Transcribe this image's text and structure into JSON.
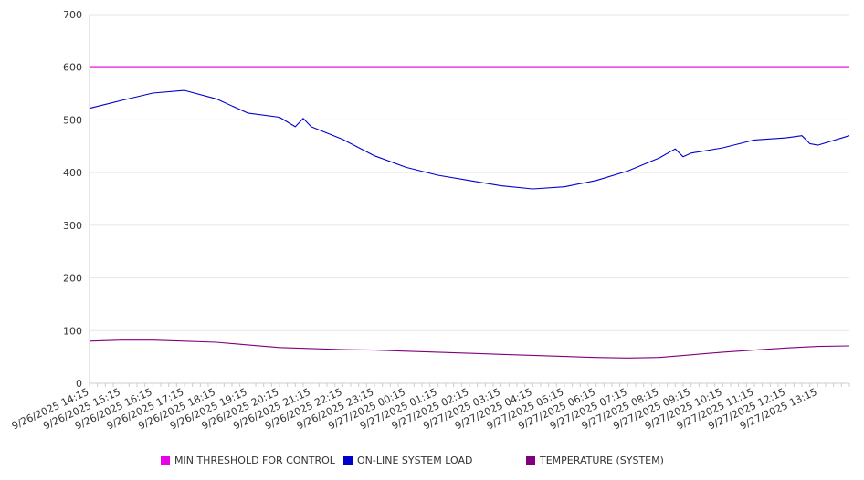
{
  "chart_data": {
    "type": "line",
    "y_ticks": [
      "0",
      "100",
      "200",
      "300",
      "400",
      "500",
      "600",
      "700"
    ],
    "ylim": [
      0,
      700
    ],
    "grid": true,
    "legend_position": "bottom",
    "x_start": "9/26/2025 14:15",
    "x_end": "9/27/2025 14:15",
    "x_tick_labels": [
      "9/26/2025 14:15",
      "9/26/2025 15:15",
      "9/26/2025 16:15",
      "9/26/2025 17:15",
      "9/26/2025 18:15",
      "9/26/2025 19:15",
      "9/26/2025 20:15",
      "9/26/2025 21:15",
      "9/26/2025 22:15",
      "9/26/2025 23:15",
      "9/27/2025 00:15",
      "9/27/2025 01:15",
      "9/27/2025 02:15",
      "9/27/2025 03:15",
      "9/27/2025 04:15",
      "9/27/2025 05:15",
      "9/27/2025 06:15",
      "9/27/2025 07:15",
      "9/27/2025 08:15",
      "9/27/2025 09:15",
      "9/27/2025 10:15",
      "9/27/2025 11:15",
      "9/27/2025 12:15",
      "9/27/2025 13:15"
    ],
    "series": [
      {
        "name": "MIN THRESHOLD FOR CONTROL",
        "color": "#E800E8",
        "x": [
          "9/26/2025 14:15",
          "9/27/2025 14:15"
        ],
        "values": [
          601,
          601
        ]
      },
      {
        "name": "ON-LINE SYSTEM LOAD",
        "color": "#0000CC",
        "x": [
          "9/26/2025 14:15",
          "9/26/2025 15:15",
          "9/26/2025 16:15",
          "9/26/2025 17:15",
          "9/26/2025 18:15",
          "9/26/2025 19:15",
          "9/26/2025 20:15",
          "9/26/2025 20:45",
          "9/26/2025 21:00",
          "9/26/2025 21:15",
          "9/26/2025 22:15",
          "9/26/2025 23:15",
          "9/27/2025 00:15",
          "9/27/2025 01:15",
          "9/27/2025 02:15",
          "9/27/2025 03:15",
          "9/27/2025 04:15",
          "9/27/2025 05:15",
          "9/27/2025 06:15",
          "9/27/2025 07:15",
          "9/27/2025 08:15",
          "9/27/2025 08:45",
          "9/27/2025 09:00",
          "9/27/2025 09:15",
          "9/27/2025 10:15",
          "9/27/2025 11:15",
          "9/27/2025 12:15",
          "9/27/2025 12:45",
          "9/27/2025 13:00",
          "9/27/2025 13:15",
          "9/27/2025 14:15"
        ],
        "values": [
          522,
          537,
          551,
          556,
          540,
          513,
          505,
          487,
          503,
          487,
          463,
          432,
          410,
          395,
          385,
          375,
          369,
          373,
          385,
          403,
          428,
          445,
          430,
          437,
          447,
          462,
          466,
          470,
          455,
          452,
          470
        ]
      },
      {
        "name": "TEMPERATURE (SYSTEM)",
        "color": "#800080",
        "x": [
          "9/26/2025 14:15",
          "9/26/2025 15:15",
          "9/26/2025 16:15",
          "9/26/2025 17:15",
          "9/26/2025 18:15",
          "9/26/2025 19:15",
          "9/26/2025 20:15",
          "9/26/2025 21:15",
          "9/26/2025 22:15",
          "9/26/2025 23:15",
          "9/27/2025 00:15",
          "9/27/2025 01:15",
          "9/27/2025 02:15",
          "9/27/2025 03:15",
          "9/27/2025 04:15",
          "9/27/2025 05:15",
          "9/27/2025 06:15",
          "9/27/2025 07:15",
          "9/27/2025 08:15",
          "9/27/2025 09:15",
          "9/27/2025 10:15",
          "9/27/2025 11:15",
          "9/27/2025 12:15",
          "9/27/2025 13:15",
          "9/27/2025 14:15"
        ],
        "values": [
          80,
          82,
          82,
          80,
          78,
          73,
          68,
          66,
          64,
          63,
          61,
          59,
          57,
          55,
          53,
          51,
          49,
          48,
          49,
          54,
          59,
          63,
          67,
          70,
          71
        ]
      }
    ]
  }
}
